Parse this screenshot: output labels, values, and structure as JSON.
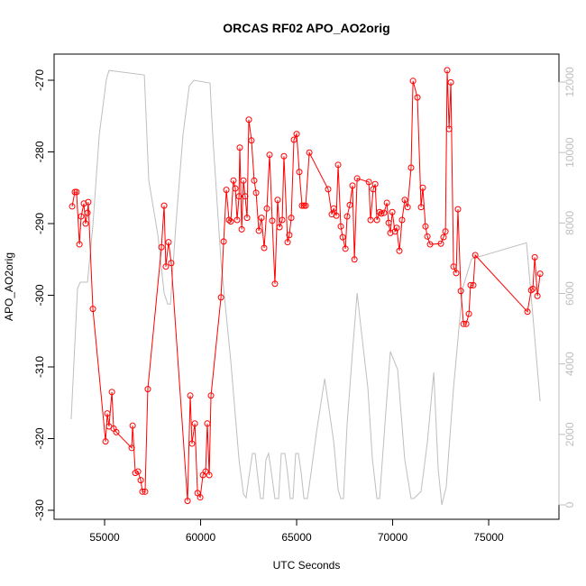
{
  "chart_data": {
    "type": "line",
    "title": "ORCAS RF02 APO_AO2orig",
    "x_label": "UTC Seconds",
    "y_label": "APO_AO2orig",
    "xlim": [
      52370,
      78660
    ],
    "ylim": [
      -331.26,
      -266.35
    ],
    "y2lim": [
      -409,
      12793
    ],
    "xticks": [
      55000,
      60000,
      65000,
      70000,
      75000
    ],
    "yticks": [
      -330,
      -320,
      -310,
      -300,
      -290,
      -280,
      -270
    ],
    "y2ticks": [
      0,
      2000,
      4000,
      6000,
      8000,
      10000,
      12000
    ],
    "series": [
      {
        "color": "#ff0000",
        "markers": true,
        "x": [
          53310,
          53450,
          53540,
          53690,
          53780,
          53920,
          54010,
          54110,
          54150,
          54390,
          55050,
          55140,
          55230,
          55380,
          55470,
          55610,
          56410,
          56460,
          56600,
          56740,
          56880,
          56970,
          57110,
          57250,
          57960,
          58100,
          58190,
          58330,
          58470,
          59320,
          59460,
          59550,
          59700,
          59840,
          59980,
          60120,
          60260,
          60350,
          60450,
          60540,
          61060,
          61200,
          61340,
          61480,
          61570,
          61710,
          61810,
          61900,
          62000,
          62040,
          62140,
          62230,
          62320,
          62420,
          62510,
          62650,
          62790,
          62890,
          63030,
          63170,
          63310,
          63450,
          63590,
          63730,
          63870,
          64010,
          64110,
          64250,
          64340,
          64530,
          64620,
          64720,
          64860,
          65000,
          65140,
          65280,
          65380,
          65470,
          65660,
          66640,
          66830,
          66930,
          67070,
          67160,
          67300,
          67400,
          67540,
          67630,
          67770,
          67910,
          68010,
          68150,
          68760,
          68850,
          68990,
          69090,
          69180,
          69320,
          69410,
          69550,
          69700,
          69790,
          69880,
          69980,
          70120,
          70210,
          70350,
          70490,
          70630,
          70780,
          70960,
          71060,
          71290,
          71480,
          71570,
          71710,
          71810,
          71950,
          72510,
          72650,
          72750,
          72840,
          72940,
          73030,
          73170,
          73310,
          73400,
          73550,
          73690,
          73830,
          73970,
          74060,
          74200,
          74300,
          77020,
          77210,
          77300,
          77400,
          77540,
          77680
        ],
        "values": [
          -287.6,
          -285.6,
          -285.6,
          -292.9,
          -289.0,
          -287.2,
          -290.0,
          -288.5,
          -287.0,
          -301.9,
          -320.4,
          -316.5,
          -318.3,
          -313.5,
          -318.6,
          -319.1,
          -321.3,
          -318.2,
          -324.8,
          -324.6,
          -325.8,
          -327.4,
          -327.4,
          -313.1,
          -293.3,
          -287.5,
          -296.0,
          -292.6,
          -295.5,
          -328.7,
          -314.0,
          -320.7,
          -317.9,
          -327.6,
          -328.2,
          -325.1,
          -324.6,
          -317.9,
          -325.1,
          -314.0,
          -300.3,
          -292.5,
          -285.3,
          -289.5,
          -289.7,
          -284.0,
          -285.1,
          -289.5,
          -286.2,
          -279.4,
          -290.8,
          -284.0,
          -286.2,
          -289.2,
          -275.5,
          -278.4,
          -284.0,
          -285.7,
          -291.0,
          -289.2,
          -293.4,
          -287.9,
          -280.4,
          -289.6,
          -298.4,
          -286.7,
          -290.5,
          -289.5,
          -280.6,
          -292.6,
          -291.6,
          -289.2,
          -278.3,
          -277.5,
          -282.8,
          -287.5,
          -287.5,
          -287.5,
          -280.1,
          -285.2,
          -288.7,
          -287.9,
          -288.9,
          -281.8,
          -290.4,
          -291.9,
          -293.5,
          -289.0,
          -287.4,
          -284.7,
          -295.0,
          -283.7,
          -284.2,
          -289.5,
          -285.2,
          -284.5,
          -289.5,
          -288.4,
          -288.6,
          -288.5,
          -287.1,
          -289.9,
          -291.3,
          -288.4,
          -291.1,
          -290.6,
          -293.8,
          -289.5,
          -286.7,
          -287.7,
          -282.2,
          -270.1,
          -272.4,
          -287.7,
          -285.0,
          -290.4,
          -291.8,
          -292.9,
          -292.8,
          -291.9,
          -291.1,
          -268.6,
          -276.8,
          -270.3,
          -296.0,
          -296.9,
          -288.0,
          -299.4,
          -304.0,
          -304.0,
          -302.6,
          -298.6,
          -298.6,
          -294.4,
          -302.3,
          -299.3,
          -299.1,
          -294.7,
          -300.1,
          -297.0
        ]
      },
      {
        "color": "#bebebe",
        "axis": "y2",
        "markers": false,
        "x": [
          53260,
          53590,
          53730,
          54110,
          54390,
          54720,
          55090,
          55230,
          57070,
          57300,
          57770,
          58100,
          58290,
          58430,
          58710,
          59080,
          59410,
          59650,
          60490,
          60630,
          61060,
          61570,
          62000,
          62230,
          62370,
          62510,
          62700,
          62840,
          62980,
          63120,
          63260,
          63400,
          63540,
          63690,
          63870,
          64060,
          64200,
          64390,
          64530,
          64670,
          64810,
          64950,
          65090,
          65240,
          65380,
          65560,
          65750,
          66030,
          66460,
          66930,
          67160,
          67300,
          67440,
          67630,
          67910,
          68150,
          68330,
          68710,
          68940,
          69180,
          69320,
          69600,
          69880,
          70260,
          70630,
          70960,
          71100,
          71480,
          71810,
          72140,
          72370,
          72560,
          72790,
          73170,
          73640,
          74110,
          76970,
          77260,
          77680
        ],
        "values": [
          2430,
          6140,
          6320,
          6320,
          7930,
          10490,
          12070,
          12330,
          12200,
          9210,
          7670,
          6010,
          5700,
          5700,
          7930,
          10490,
          11890,
          12050,
          11970,
          10490,
          6910,
          4090,
          1280,
          310,
          200,
          770,
          1460,
          1460,
          770,
          180,
          180,
          1280,
          1460,
          900,
          180,
          180,
          1460,
          1460,
          900,
          180,
          180,
          1460,
          1460,
          900,
          180,
          180,
          900,
          2050,
          3580,
          1790,
          430,
          180,
          180,
          2300,
          4350,
          6010,
          5120,
          3320,
          1330,
          180,
          180,
          2300,
          4350,
          3840,
          1280,
          180,
          180,
          380,
          1790,
          3760,
          1020,
          0,
          510,
          3320,
          6140,
          6980,
          7440,
          5630,
          2940
        ]
      }
    ]
  }
}
